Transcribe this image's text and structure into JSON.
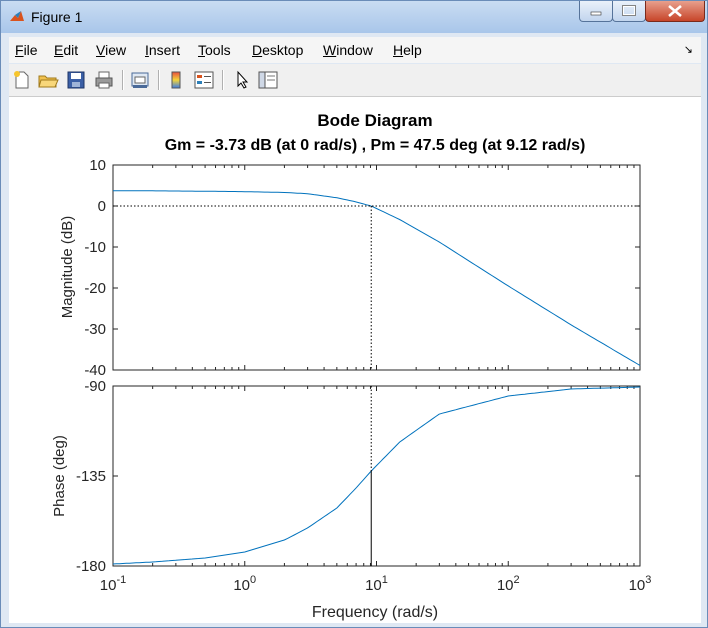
{
  "window": {
    "title": "Figure 1"
  },
  "menu": {
    "items": [
      "File",
      "Edit",
      "View",
      "Insert",
      "Tools",
      "Desktop",
      "Window",
      "Help"
    ]
  },
  "toolbar": {
    "icons": [
      "new-figure-icon",
      "open-file-icon",
      "save-icon",
      "print-icon",
      "print-preview-icon",
      "colorbar-icon",
      "legend-icon",
      "edit-plot-pointer-icon",
      "plot-browser-icon"
    ]
  },
  "chart_data": {
    "type": "line",
    "title": "Bode Diagram",
    "subtitle": "Gm = -3.73 dB (at 0 rad/s) ,  Pm = 47.5 deg (at 9.12 rad/s)",
    "xlabel": "Frequency  (rad/s)",
    "x_scale": "log",
    "xlim": [
      0.1,
      1000
    ],
    "x_tick_labels": [
      "10^-1",
      "10^0",
      "10^1",
      "10^2",
      "10^3"
    ],
    "grid": false,
    "series_color": "#0072bd",
    "phase_margin_frequency": 9.12,
    "panels": [
      {
        "name": "magnitude",
        "ylabel": "Magnitude (dB)",
        "ylim": [
          -40,
          10
        ],
        "y_ticks": [
          "10",
          "0",
          "-10",
          "-20",
          "-30",
          "-40"
        ],
        "x": [
          0.1,
          0.2,
          0.5,
          1,
          2,
          3,
          5,
          7,
          9.12,
          15,
          30,
          100,
          300,
          1000
        ],
        "y": [
          3.7,
          3.7,
          3.6,
          3.5,
          3.3,
          3.0,
          2.0,
          1.0,
          0.0,
          -3.3,
          -8.8,
          -19.5,
          -29.0,
          -38.9
        ]
      },
      {
        "name": "phase",
        "ylabel": "Phase (deg)",
        "ylim": [
          -180,
          -90
        ],
        "y_ticks": [
          "-90",
          "-135",
          "-180"
        ],
        "x": [
          0.1,
          0.2,
          0.5,
          1,
          2,
          3,
          5,
          7,
          9.12,
          15,
          30,
          100,
          300,
          1000
        ],
        "y": [
          -179,
          -178,
          -176,
          -173,
          -167,
          -161,
          -151,
          -141,
          -132.5,
          -118,
          -104,
          -95,
          -91.5,
          -90.5
        ]
      }
    ]
  }
}
